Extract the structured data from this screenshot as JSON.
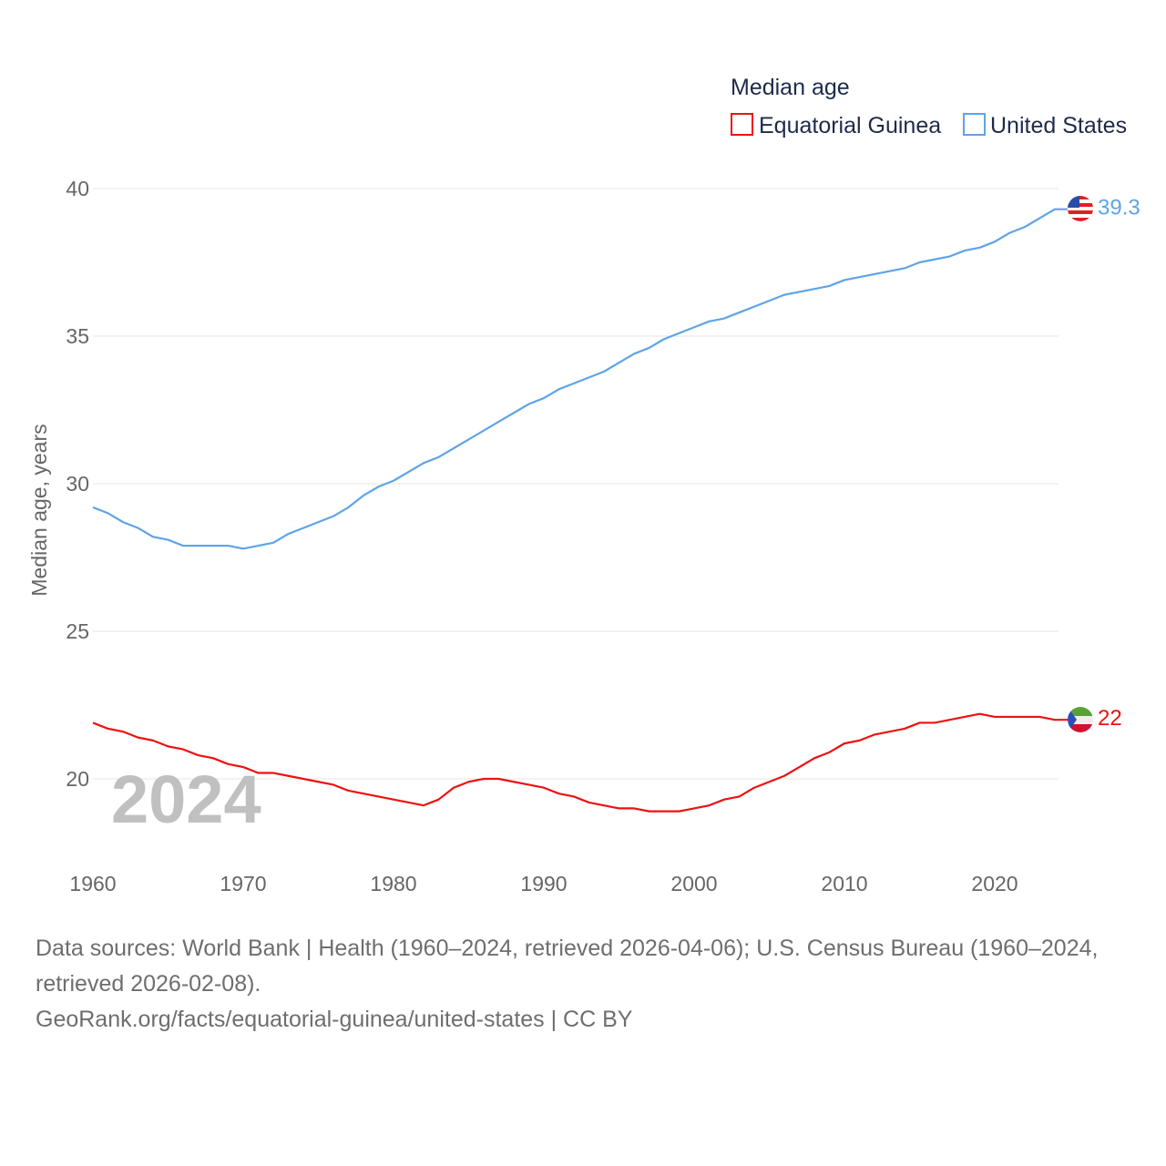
{
  "chart_data": {
    "type": "line",
    "title": "",
    "legend_title": "Median age",
    "ylabel": "Median age, years",
    "xlabel": "",
    "ylim": [
      17.4,
      40.5
    ],
    "xlim": [
      1960,
      2024
    ],
    "yticks": [
      20,
      25,
      30,
      35,
      40
    ],
    "xticks": [
      1960,
      1970,
      1980,
      1990,
      2000,
      2010,
      2020
    ],
    "grid": true,
    "legend_position": "top-right",
    "year_label": "2024",
    "x": [
      1960,
      1961,
      1962,
      1963,
      1964,
      1965,
      1966,
      1967,
      1968,
      1969,
      1970,
      1971,
      1972,
      1973,
      1974,
      1975,
      1976,
      1977,
      1978,
      1979,
      1980,
      1981,
      1982,
      1983,
      1984,
      1985,
      1986,
      1987,
      1988,
      1989,
      1990,
      1991,
      1992,
      1993,
      1994,
      1995,
      1996,
      1997,
      1998,
      1999,
      2000,
      2001,
      2002,
      2003,
      2004,
      2005,
      2006,
      2007,
      2008,
      2009,
      2010,
      2011,
      2012,
      2013,
      2014,
      2015,
      2016,
      2017,
      2018,
      2019,
      2020,
      2021,
      2022,
      2023,
      2024
    ],
    "series": [
      {
        "name": "Equatorial Guinea",
        "color": "#ee1111",
        "end_label": "22",
        "values": [
          21.9,
          21.7,
          21.6,
          21.4,
          21.3,
          21.1,
          21.0,
          20.8,
          20.7,
          20.5,
          20.4,
          20.2,
          20.2,
          20.1,
          20.0,
          19.9,
          19.8,
          19.6,
          19.5,
          19.4,
          19.3,
          19.2,
          19.1,
          19.3,
          19.7,
          19.9,
          20.0,
          20.0,
          19.9,
          19.8,
          19.7,
          19.5,
          19.4,
          19.2,
          19.1,
          19.0,
          19.0,
          18.9,
          18.9,
          18.9,
          19.0,
          19.1,
          19.3,
          19.4,
          19.7,
          19.9,
          20.1,
          20.4,
          20.7,
          20.9,
          21.2,
          21.3,
          21.5,
          21.6,
          21.7,
          21.9,
          21.9,
          22.0,
          22.1,
          22.2,
          22.1,
          22.1,
          22.1,
          22.1,
          22.0
        ]
      },
      {
        "name": "United States",
        "color": "#5ea4e8",
        "end_label": "39.3",
        "values": [
          29.2,
          29.0,
          28.7,
          28.5,
          28.2,
          28.1,
          27.9,
          27.9,
          27.9,
          27.9,
          27.8,
          27.9,
          28.0,
          28.3,
          28.5,
          28.7,
          28.9,
          29.2,
          29.6,
          29.9,
          30.1,
          30.4,
          30.7,
          30.9,
          31.2,
          31.5,
          31.8,
          32.1,
          32.4,
          32.7,
          32.9,
          33.2,
          33.4,
          33.6,
          33.8,
          34.1,
          34.4,
          34.6,
          34.9,
          35.1,
          35.3,
          35.5,
          35.6,
          35.8,
          36.0,
          36.2,
          36.4,
          36.5,
          36.6,
          36.7,
          36.9,
          37.0,
          37.1,
          37.2,
          37.3,
          37.5,
          37.6,
          37.7,
          37.9,
          38.0,
          38.2,
          38.5,
          38.7,
          39.0,
          39.3
        ]
      }
    ]
  },
  "footer": {
    "sources": "Data sources: World Bank | Health (1960–2024, retrieved 2026-04-06); U.S. Census Bureau (1960–2024, retrieved 2026-02-08).",
    "link": "GeoRank.org/facts/equatorial-guinea/united-states | CC BY"
  }
}
